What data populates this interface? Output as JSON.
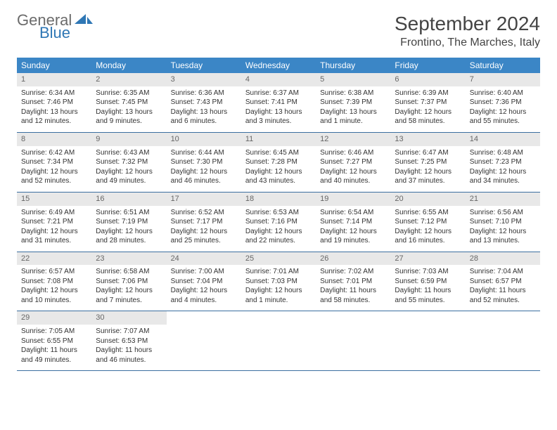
{
  "logo": {
    "text1": "General",
    "text2": "Blue"
  },
  "title": "September 2024",
  "location": "Frontino, The Marches, Italy",
  "colors": {
    "headerBar": "#3b86c6",
    "dayNumBg": "#e8e8e8",
    "weekBorder": "#3b6fa0",
    "logoBlue": "#2f77b5",
    "logoGray": "#6b6b6b"
  },
  "weekdays": [
    "Sunday",
    "Monday",
    "Tuesday",
    "Wednesday",
    "Thursday",
    "Friday",
    "Saturday"
  ],
  "weeks": [
    [
      {
        "n": "1",
        "sunrise": "6:34 AM",
        "sunset": "7:46 PM",
        "daylight": "13 hours and 12 minutes."
      },
      {
        "n": "2",
        "sunrise": "6:35 AM",
        "sunset": "7:45 PM",
        "daylight": "13 hours and 9 minutes."
      },
      {
        "n": "3",
        "sunrise": "6:36 AM",
        "sunset": "7:43 PM",
        "daylight": "13 hours and 6 minutes."
      },
      {
        "n": "4",
        "sunrise": "6:37 AM",
        "sunset": "7:41 PM",
        "daylight": "13 hours and 3 minutes."
      },
      {
        "n": "5",
        "sunrise": "6:38 AM",
        "sunset": "7:39 PM",
        "daylight": "13 hours and 1 minute."
      },
      {
        "n": "6",
        "sunrise": "6:39 AM",
        "sunset": "7:37 PM",
        "daylight": "12 hours and 58 minutes."
      },
      {
        "n": "7",
        "sunrise": "6:40 AM",
        "sunset": "7:36 PM",
        "daylight": "12 hours and 55 minutes."
      }
    ],
    [
      {
        "n": "8",
        "sunrise": "6:42 AM",
        "sunset": "7:34 PM",
        "daylight": "12 hours and 52 minutes."
      },
      {
        "n": "9",
        "sunrise": "6:43 AM",
        "sunset": "7:32 PM",
        "daylight": "12 hours and 49 minutes."
      },
      {
        "n": "10",
        "sunrise": "6:44 AM",
        "sunset": "7:30 PM",
        "daylight": "12 hours and 46 minutes."
      },
      {
        "n": "11",
        "sunrise": "6:45 AM",
        "sunset": "7:28 PM",
        "daylight": "12 hours and 43 minutes."
      },
      {
        "n": "12",
        "sunrise": "6:46 AM",
        "sunset": "7:27 PM",
        "daylight": "12 hours and 40 minutes."
      },
      {
        "n": "13",
        "sunrise": "6:47 AM",
        "sunset": "7:25 PM",
        "daylight": "12 hours and 37 minutes."
      },
      {
        "n": "14",
        "sunrise": "6:48 AM",
        "sunset": "7:23 PM",
        "daylight": "12 hours and 34 minutes."
      }
    ],
    [
      {
        "n": "15",
        "sunrise": "6:49 AM",
        "sunset": "7:21 PM",
        "daylight": "12 hours and 31 minutes."
      },
      {
        "n": "16",
        "sunrise": "6:51 AM",
        "sunset": "7:19 PM",
        "daylight": "12 hours and 28 minutes."
      },
      {
        "n": "17",
        "sunrise": "6:52 AM",
        "sunset": "7:17 PM",
        "daylight": "12 hours and 25 minutes."
      },
      {
        "n": "18",
        "sunrise": "6:53 AM",
        "sunset": "7:16 PM",
        "daylight": "12 hours and 22 minutes."
      },
      {
        "n": "19",
        "sunrise": "6:54 AM",
        "sunset": "7:14 PM",
        "daylight": "12 hours and 19 minutes."
      },
      {
        "n": "20",
        "sunrise": "6:55 AM",
        "sunset": "7:12 PM",
        "daylight": "12 hours and 16 minutes."
      },
      {
        "n": "21",
        "sunrise": "6:56 AM",
        "sunset": "7:10 PM",
        "daylight": "12 hours and 13 minutes."
      }
    ],
    [
      {
        "n": "22",
        "sunrise": "6:57 AM",
        "sunset": "7:08 PM",
        "daylight": "12 hours and 10 minutes."
      },
      {
        "n": "23",
        "sunrise": "6:58 AM",
        "sunset": "7:06 PM",
        "daylight": "12 hours and 7 minutes."
      },
      {
        "n": "24",
        "sunrise": "7:00 AM",
        "sunset": "7:04 PM",
        "daylight": "12 hours and 4 minutes."
      },
      {
        "n": "25",
        "sunrise": "7:01 AM",
        "sunset": "7:03 PM",
        "daylight": "12 hours and 1 minute."
      },
      {
        "n": "26",
        "sunrise": "7:02 AM",
        "sunset": "7:01 PM",
        "daylight": "11 hours and 58 minutes."
      },
      {
        "n": "27",
        "sunrise": "7:03 AM",
        "sunset": "6:59 PM",
        "daylight": "11 hours and 55 minutes."
      },
      {
        "n": "28",
        "sunrise": "7:04 AM",
        "sunset": "6:57 PM",
        "daylight": "11 hours and 52 minutes."
      }
    ],
    [
      {
        "n": "29",
        "sunrise": "7:05 AM",
        "sunset": "6:55 PM",
        "daylight": "11 hours and 49 minutes."
      },
      {
        "n": "30",
        "sunrise": "7:07 AM",
        "sunset": "6:53 PM",
        "daylight": "11 hours and 46 minutes."
      },
      null,
      null,
      null,
      null,
      null
    ]
  ],
  "labels": {
    "sunrise": "Sunrise:",
    "sunset": "Sunset:",
    "daylight": "Daylight:"
  }
}
